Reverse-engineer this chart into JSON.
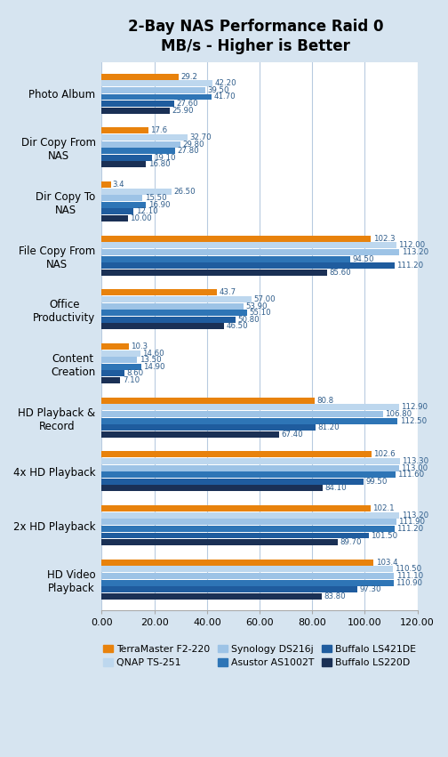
{
  "title": "2-Bay NAS Performance Raid 0\nMB/s - Higher is Better",
  "categories": [
    "Photo Album",
    "Dir Copy From\nNAS",
    "Dir Copy To\nNAS",
    "File Copy From\nNAS",
    "Office\nProductivity",
    "Content\nCreation",
    "HD Playback &\nRecord",
    "4x HD Playback",
    "2x HD Playback",
    "HD Video\nPlayback"
  ],
  "series_names": [
    "TerraMaster F2-220",
    "QNAP TS-251",
    "Synology DS216j",
    "Asustor AS1002T",
    "Buffalo LS421DE",
    "Buffalo LS220D"
  ],
  "colors": [
    "#E8820C",
    "#BDD7EE",
    "#9DC3E6",
    "#2E75B6",
    "#1F5C9E",
    "#1A3055"
  ],
  "data": [
    [
      29.2,
      42.2,
      39.5,
      41.7,
      27.6,
      25.9
    ],
    [
      17.6,
      32.7,
      29.8,
      27.8,
      19.1,
      16.8
    ],
    [
      3.4,
      26.5,
      15.5,
      16.9,
      12.1,
      10.0
    ],
    [
      102.3,
      112.0,
      113.2,
      94.5,
      111.2,
      85.6
    ],
    [
      43.7,
      57.0,
      53.9,
      55.1,
      50.8,
      46.5
    ],
    [
      10.3,
      14.6,
      13.5,
      14.9,
      8.6,
      7.1
    ],
    [
      80.8,
      112.9,
      106.8,
      112.5,
      81.2,
      67.4
    ],
    [
      102.6,
      113.3,
      113.0,
      111.6,
      99.5,
      84.1
    ],
    [
      102.1,
      113.2,
      111.9,
      111.2,
      101.5,
      89.7
    ],
    [
      103.4,
      110.5,
      111.1,
      110.9,
      97.3,
      83.8
    ]
  ],
  "label_values": [
    [
      "29.2",
      "42.20",
      "39.50",
      "41.70",
      "27.60",
      "25.90"
    ],
    [
      "17.6",
      "32.70",
      "29.80",
      "27.80",
      "19.10",
      "16.80"
    ],
    [
      "3.4",
      "26.50",
      "15.50",
      "16.90",
      "12.10",
      "10.00"
    ],
    [
      "102.3",
      "112.00",
      "113.20",
      "94.50",
      "111.20",
      "85.60"
    ],
    [
      "43.7",
      "57.00",
      "53.90",
      "55.10",
      "50.80",
      "46.50"
    ],
    [
      "10.3",
      "14.60",
      "13.50",
      "14.90",
      "8.60",
      "7.10"
    ],
    [
      "80.8",
      "112.90",
      "106.80",
      "112.50",
      "81.20",
      "67.40"
    ],
    [
      "102.6",
      "113.30",
      "113.00",
      "111.60",
      "99.50",
      "84.10"
    ],
    [
      "102.1",
      "113.20",
      "111.90",
      "111.20",
      "101.50",
      "89.70"
    ],
    [
      "103.4",
      "110.50",
      "111.10",
      "110.90",
      "97.30",
      "83.80"
    ]
  ],
  "xlim": [
    0,
    120
  ],
  "xticks": [
    0,
    20,
    40,
    60,
    80,
    100,
    120
  ],
  "xtick_labels": [
    "0.00",
    "20.00",
    "40.00",
    "60.00",
    "80.00",
    "100.00",
    "120.00"
  ],
  "bg_color": "#D6E4F0",
  "plot_bg_color": "#FFFFFF",
  "grid_color": "#B8CBE0",
  "label_color": "#2E5C8A",
  "title_color": "#000000"
}
